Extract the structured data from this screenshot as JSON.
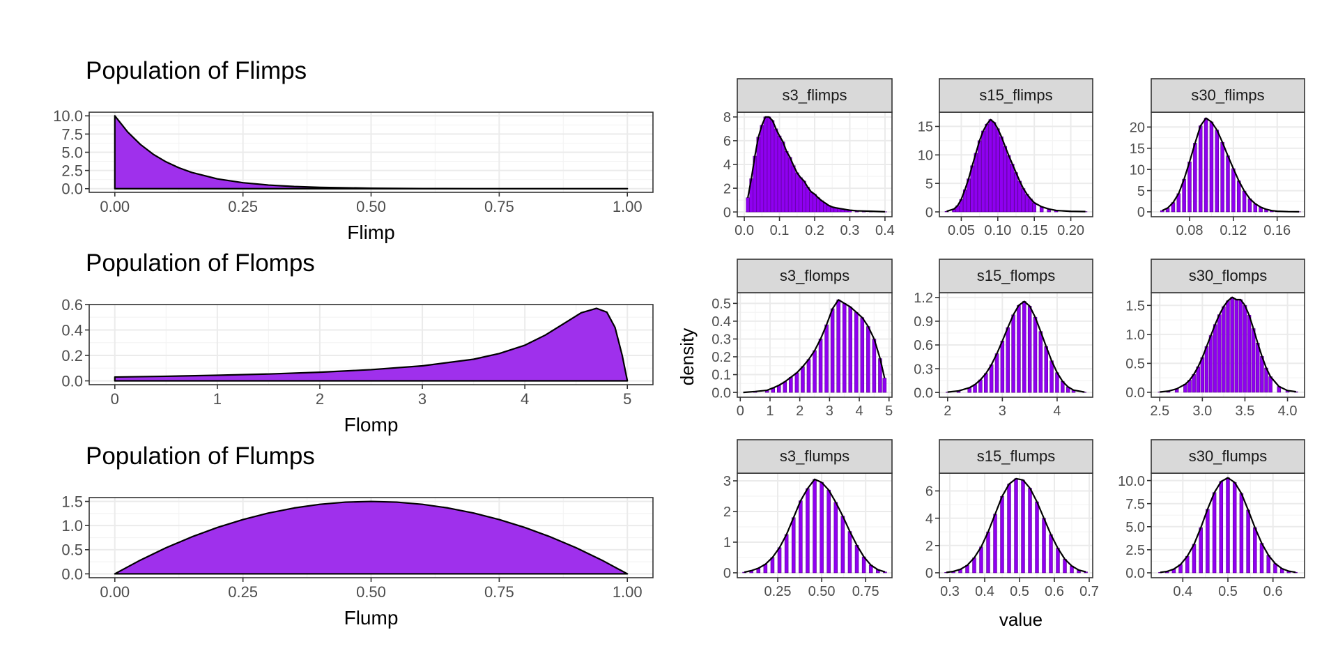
{
  "colors": {
    "fill": "#9f30ec",
    "hist_fill": "#8f00f0",
    "outline": "#000000",
    "strip_bg": "#d9d9d9",
    "grid_major": "#ebebeb",
    "grid_minor": "#f4f4f4",
    "panel_border": "#333333",
    "tick_text": "#4d4d4d"
  },
  "facet_labels": {
    "y": "density",
    "x": "value"
  },
  "chart_data": [
    {
      "id": "flimps",
      "type": "area",
      "title": "Population of Flimps",
      "xlabel": "Flimp",
      "ylabel": "",
      "xlim": [
        -0.05,
        1.05
      ],
      "ylim": [
        -0.5,
        10.5
      ],
      "xticks": [
        0,
        0.25,
        0.5,
        0.75,
        1
      ],
      "xtick_labels": [
        "0.00",
        "0.25",
        "0.50",
        "0.75",
        "1.00"
      ],
      "yticks": [
        0,
        2.5,
        5,
        7.5,
        10
      ],
      "ytick_labels": [
        "0.0",
        "2.5",
        "5.0",
        "7.5",
        "10.0"
      ],
      "grid": true,
      "x": [
        0,
        0.025,
        0.05,
        0.075,
        0.1,
        0.125,
        0.15,
        0.2,
        0.25,
        0.3,
        0.35,
        0.4,
        0.5,
        0.6,
        0.7,
        0.8,
        0.9,
        1.0
      ],
      "y": [
        10,
        7.79,
        6.07,
        4.72,
        3.68,
        2.87,
        2.23,
        1.35,
        0.82,
        0.5,
        0.3,
        0.18,
        0.07,
        0.02,
        0.01,
        0.0,
        0.0,
        0.0
      ]
    },
    {
      "id": "flomps",
      "type": "area",
      "title": "Population of Flomps",
      "xlabel": "Flomp",
      "ylabel": "",
      "xlim": [
        -0.25,
        5.25
      ],
      "ylim": [
        -0.03,
        0.6
      ],
      "xticks": [
        0,
        1,
        2,
        3,
        4,
        5
      ],
      "xtick_labels": [
        "0",
        "1",
        "2",
        "3",
        "4",
        "5"
      ],
      "yticks": [
        0,
        0.2,
        0.4,
        0.6
      ],
      "ytick_labels": [
        "0.0",
        "0.2",
        "0.4",
        "0.6"
      ],
      "grid": true,
      "x": [
        0,
        0.5,
        1.0,
        1.5,
        2.0,
        2.5,
        3.0,
        3.5,
        3.75,
        4.0,
        4.2,
        4.4,
        4.55,
        4.7,
        4.8,
        4.88,
        4.95,
        5.0
      ],
      "y": [
        0.03,
        0.036,
        0.044,
        0.054,
        0.068,
        0.088,
        0.118,
        0.17,
        0.215,
        0.28,
        0.36,
        0.46,
        0.535,
        0.57,
        0.54,
        0.42,
        0.2,
        0.0
      ]
    },
    {
      "id": "flumps",
      "type": "area",
      "title": "Population of Flumps",
      "xlabel": "Flump",
      "ylabel": "",
      "xlim": [
        -0.05,
        1.05
      ],
      "ylim": [
        -0.08,
        1.58
      ],
      "xticks": [
        0,
        0.25,
        0.5,
        0.75,
        1
      ],
      "xtick_labels": [
        "0.00",
        "0.25",
        "0.50",
        "0.75",
        "1.00"
      ],
      "yticks": [
        0,
        0.5,
        1,
        1.5
      ],
      "ytick_labels": [
        "0.0",
        "0.5",
        "1.0",
        "1.5"
      ],
      "grid": true,
      "x": [
        0,
        0.05,
        0.1,
        0.15,
        0.2,
        0.25,
        0.3,
        0.35,
        0.4,
        0.45,
        0.5,
        0.55,
        0.6,
        0.65,
        0.7,
        0.75,
        0.8,
        0.85,
        0.9,
        0.95,
        1.0
      ],
      "y": [
        0,
        0.285,
        0.54,
        0.765,
        0.96,
        1.125,
        1.26,
        1.365,
        1.44,
        1.485,
        1.5,
        1.485,
        1.44,
        1.365,
        1.26,
        1.125,
        0.96,
        0.765,
        0.54,
        0.285,
        0
      ]
    },
    {
      "id": "s3_flimps",
      "type": "bar",
      "title": "s3_flimps",
      "xlim": [
        -0.02,
        0.42
      ],
      "ylim": [
        -0.4,
        8.4
      ],
      "xticks": [
        0,
        0.1,
        0.2,
        0.3,
        0.4
      ],
      "xtick_labels": [
        "0.0",
        "0.1",
        "0.2",
        "0.3",
        "0.4"
      ],
      "yticks": [
        0,
        2,
        4,
        6,
        8
      ],
      "ytick_labels": [
        "0",
        "2",
        "4",
        "6",
        "8"
      ],
      "x": [
        0.01,
        0.02,
        0.03,
        0.04,
        0.05,
        0.06,
        0.07,
        0.08,
        0.09,
        0.1,
        0.11,
        0.12,
        0.13,
        0.14,
        0.15,
        0.16,
        0.17,
        0.18,
        0.19,
        0.2,
        0.21,
        0.22,
        0.23,
        0.24,
        0.25,
        0.26,
        0.27,
        0.28,
        0.29,
        0.3,
        0.32,
        0.34,
        0.36,
        0.38,
        0.4
      ],
      "values": [
        1.2,
        2.8,
        4.7,
        6.3,
        7.3,
        8.0,
        8.0,
        7.7,
        7.0,
        6.4,
        5.9,
        5.1,
        4.6,
        3.9,
        3.3,
        2.9,
        2.6,
        2.1,
        1.7,
        1.5,
        1.2,
        0.95,
        0.75,
        0.55,
        0.42,
        0.35,
        0.3,
        0.25,
        0.2,
        0.15,
        0.1,
        0.08,
        0.06,
        0.04,
        0.02
      ]
    },
    {
      "id": "s15_flimps",
      "type": "bar",
      "title": "s15_flimps",
      "xlim": [
        0.02,
        0.23
      ],
      "ylim": [
        -0.85,
        17.5
      ],
      "xticks": [
        0.05,
        0.1,
        0.15,
        0.2
      ],
      "xtick_labels": [
        "0.05",
        "0.10",
        "0.15",
        "0.20"
      ],
      "yticks": [
        0,
        5,
        10,
        15
      ],
      "ytick_labels": [
        "0",
        "5",
        "10",
        "15"
      ],
      "x": [
        0.03,
        0.04,
        0.045,
        0.05,
        0.055,
        0.06,
        0.065,
        0.07,
        0.075,
        0.08,
        0.085,
        0.09,
        0.095,
        0.1,
        0.105,
        0.11,
        0.115,
        0.12,
        0.125,
        0.13,
        0.135,
        0.14,
        0.145,
        0.15,
        0.16,
        0.17,
        0.18,
        0.2,
        0.22
      ],
      "values": [
        0.1,
        0.5,
        1.1,
        2.2,
        3.9,
        5.8,
        8.1,
        10.3,
        12.5,
        14.2,
        15.4,
        16.2,
        15.7,
        14.6,
        13.2,
        11.5,
        9.9,
        8.4,
        6.9,
        5.4,
        4.1,
        3.1,
        2.3,
        1.6,
        0.9,
        0.5,
        0.25,
        0.1,
        0.05
      ]
    },
    {
      "id": "s30_flimps",
      "type": "bar",
      "title": "s30_flimps",
      "xlim": [
        0.045,
        0.185
      ],
      "ylim": [
        -1.15,
        23.5
      ],
      "xticks": [
        0.08,
        0.12,
        0.16
      ],
      "xtick_labels": [
        "0.08",
        "0.12",
        "0.16"
      ],
      "yticks": [
        0,
        5,
        10,
        15,
        20
      ],
      "ytick_labels": [
        "0",
        "5",
        "10",
        "15",
        "20"
      ],
      "x": [
        0.055,
        0.06,
        0.065,
        0.07,
        0.075,
        0.08,
        0.085,
        0.09,
        0.095,
        0.1,
        0.105,
        0.11,
        0.115,
        0.12,
        0.125,
        0.13,
        0.135,
        0.14,
        0.145,
        0.15,
        0.155,
        0.16,
        0.17,
        0.18
      ],
      "values": [
        0.3,
        0.9,
        2.2,
        4.3,
        7.7,
        11.8,
        16.2,
        20.3,
        22.1,
        21.2,
        19.3,
        16.4,
        13.2,
        10.2,
        7.3,
        4.9,
        3.1,
        1.9,
        1.1,
        0.6,
        0.3,
        0.15,
        0.05,
        0.02
      ]
    },
    {
      "id": "s3_flomps",
      "type": "bar",
      "title": "s3_flomps",
      "xlim": [
        -0.1,
        5.1
      ],
      "ylim": [
        -0.027,
        0.56
      ],
      "xticks": [
        0,
        1,
        2,
        3,
        4,
        5
      ],
      "xtick_labels": [
        "0",
        "1",
        "2",
        "3",
        "4",
        "5"
      ],
      "yticks": [
        0,
        0.1,
        0.2,
        0.3,
        0.4,
        0.5
      ],
      "ytick_labels": [
        "0.0",
        "0.1",
        "0.2",
        "0.3",
        "0.4",
        "0.5"
      ],
      "x": [
        0.1,
        0.5,
        0.9,
        1.1,
        1.3,
        1.5,
        1.7,
        1.9,
        2.1,
        2.3,
        2.5,
        2.7,
        2.9,
        3.1,
        3.3,
        3.5,
        3.7,
        3.9,
        4.1,
        4.3,
        4.5,
        4.7,
        4.85
      ],
      "values": [
        0.0,
        0.005,
        0.012,
        0.025,
        0.04,
        0.06,
        0.085,
        0.11,
        0.145,
        0.185,
        0.235,
        0.3,
        0.38,
        0.47,
        0.52,
        0.5,
        0.48,
        0.45,
        0.42,
        0.37,
        0.3,
        0.19,
        0.08
      ]
    },
    {
      "id": "s15_flomps",
      "type": "bar",
      "title": "s15_flomps",
      "xlim": [
        1.85,
        4.65
      ],
      "ylim": [
        -0.06,
        1.26
      ],
      "xticks": [
        2,
        3,
        4
      ],
      "xtick_labels": [
        "2",
        "3",
        "4"
      ],
      "yticks": [
        0,
        0.3,
        0.6,
        0.9,
        1.2
      ],
      "ytick_labels": [
        "0.0",
        "0.3",
        "0.6",
        "0.9",
        "1.2"
      ],
      "x": [
        2.0,
        2.2,
        2.4,
        2.5,
        2.6,
        2.7,
        2.8,
        2.9,
        3.0,
        3.1,
        3.2,
        3.3,
        3.4,
        3.5,
        3.6,
        3.7,
        3.8,
        3.9,
        4.0,
        4.1,
        4.2,
        4.3,
        4.5
      ],
      "values": [
        0.005,
        0.02,
        0.06,
        0.1,
        0.16,
        0.24,
        0.35,
        0.49,
        0.65,
        0.82,
        0.98,
        1.1,
        1.15,
        1.09,
        0.95,
        0.77,
        0.58,
        0.4,
        0.25,
        0.14,
        0.07,
        0.03,
        0.005
      ]
    },
    {
      "id": "s30_flomps",
      "type": "bar",
      "title": "s30_flomps",
      "xlim": [
        2.4,
        4.2
      ],
      "ylim": [
        -0.085,
        1.72
      ],
      "xticks": [
        2.5,
        3,
        3.5,
        4
      ],
      "xtick_labels": [
        "2.5",
        "3.0",
        "3.5",
        "4.0"
      ],
      "yticks": [
        0,
        0.5,
        1,
        1.5
      ],
      "ytick_labels": [
        "0.0",
        "0.5",
        "1.0",
        "1.5"
      ],
      "x": [
        2.5,
        2.6,
        2.7,
        2.8,
        2.85,
        2.9,
        2.95,
        3.0,
        3.05,
        3.1,
        3.15,
        3.2,
        3.25,
        3.3,
        3.35,
        3.4,
        3.45,
        3.5,
        3.55,
        3.6,
        3.65,
        3.7,
        3.75,
        3.8,
        3.9,
        4.0,
        4.1
      ],
      "values": [
        0.005,
        0.02,
        0.06,
        0.14,
        0.21,
        0.31,
        0.44,
        0.6,
        0.79,
        0.98,
        1.17,
        1.34,
        1.48,
        1.58,
        1.64,
        1.6,
        1.6,
        1.5,
        1.33,
        1.1,
        0.85,
        0.62,
        0.42,
        0.27,
        0.1,
        0.03,
        0.01
      ]
    },
    {
      "id": "s3_flumps",
      "type": "bar",
      "title": "s3_flumps",
      "xlim": [
        0.02,
        0.9
      ],
      "ylim": [
        -0.16,
        3.25
      ],
      "xticks": [
        0.25,
        0.5,
        0.75
      ],
      "xtick_labels": [
        "0.25",
        "0.50",
        "0.75"
      ],
      "yticks": [
        0,
        1,
        2,
        3
      ],
      "ytick_labels": [
        "0",
        "1",
        "2",
        "3"
      ],
      "x": [
        0.06,
        0.1,
        0.14,
        0.18,
        0.22,
        0.26,
        0.3,
        0.34,
        0.38,
        0.42,
        0.46,
        0.5,
        0.54,
        0.58,
        0.62,
        0.66,
        0.7,
        0.74,
        0.78,
        0.82,
        0.86
      ],
      "values": [
        0.02,
        0.07,
        0.15,
        0.28,
        0.5,
        0.82,
        1.25,
        1.8,
        2.35,
        2.75,
        3.05,
        2.95,
        2.7,
        2.3,
        1.85,
        1.35,
        0.9,
        0.52,
        0.25,
        0.1,
        0.03
      ]
    },
    {
      "id": "s15_flumps",
      "type": "bar",
      "title": "s15_flumps",
      "xlim": [
        0.27,
        0.71
      ],
      "ylim": [
        -0.36,
        7.3
      ],
      "xticks": [
        0.3,
        0.4,
        0.5,
        0.6,
        0.7
      ],
      "xtick_labels": [
        "0.3",
        "0.4",
        "0.5",
        "0.6",
        "0.7"
      ],
      "yticks": [
        0,
        2,
        4,
        6
      ],
      "ytick_labels": [
        "0",
        "2",
        "4",
        "6"
      ],
      "x": [
        0.29,
        0.31,
        0.33,
        0.35,
        0.37,
        0.39,
        0.41,
        0.43,
        0.45,
        0.47,
        0.49,
        0.51,
        0.53,
        0.55,
        0.57,
        0.59,
        0.61,
        0.63,
        0.65,
        0.67,
        0.69
      ],
      "values": [
        0.03,
        0.1,
        0.25,
        0.55,
        1.1,
        1.9,
        3.0,
        4.3,
        5.6,
        6.5,
        6.9,
        6.8,
        6.2,
        5.2,
        4.0,
        2.8,
        1.8,
        1.0,
        0.5,
        0.2,
        0.07
      ]
    },
    {
      "id": "s30_flumps",
      "type": "bar",
      "title": "s30_flumps",
      "xlim": [
        0.33,
        0.67
      ],
      "ylim": [
        -0.53,
        10.8
      ],
      "xticks": [
        0.4,
        0.5,
        0.6
      ],
      "xtick_labels": [
        "0.4",
        "0.5",
        "0.6"
      ],
      "yticks": [
        0,
        2.5,
        5,
        7.5,
        10
      ],
      "ytick_labels": [
        "0.0",
        "2.5",
        "5.0",
        "7.5",
        "10.0"
      ],
      "x": [
        0.35,
        0.365,
        0.38,
        0.395,
        0.41,
        0.425,
        0.44,
        0.455,
        0.47,
        0.485,
        0.5,
        0.515,
        0.53,
        0.545,
        0.56,
        0.575,
        0.59,
        0.605,
        0.62,
        0.635,
        0.65
      ],
      "values": [
        0.05,
        0.15,
        0.4,
        0.9,
        1.8,
        3.1,
        4.9,
        6.9,
        8.7,
        9.9,
        10.3,
        9.8,
        8.6,
        6.8,
        4.9,
        3.2,
        1.9,
        1.0,
        0.45,
        0.18,
        0.06
      ]
    }
  ]
}
